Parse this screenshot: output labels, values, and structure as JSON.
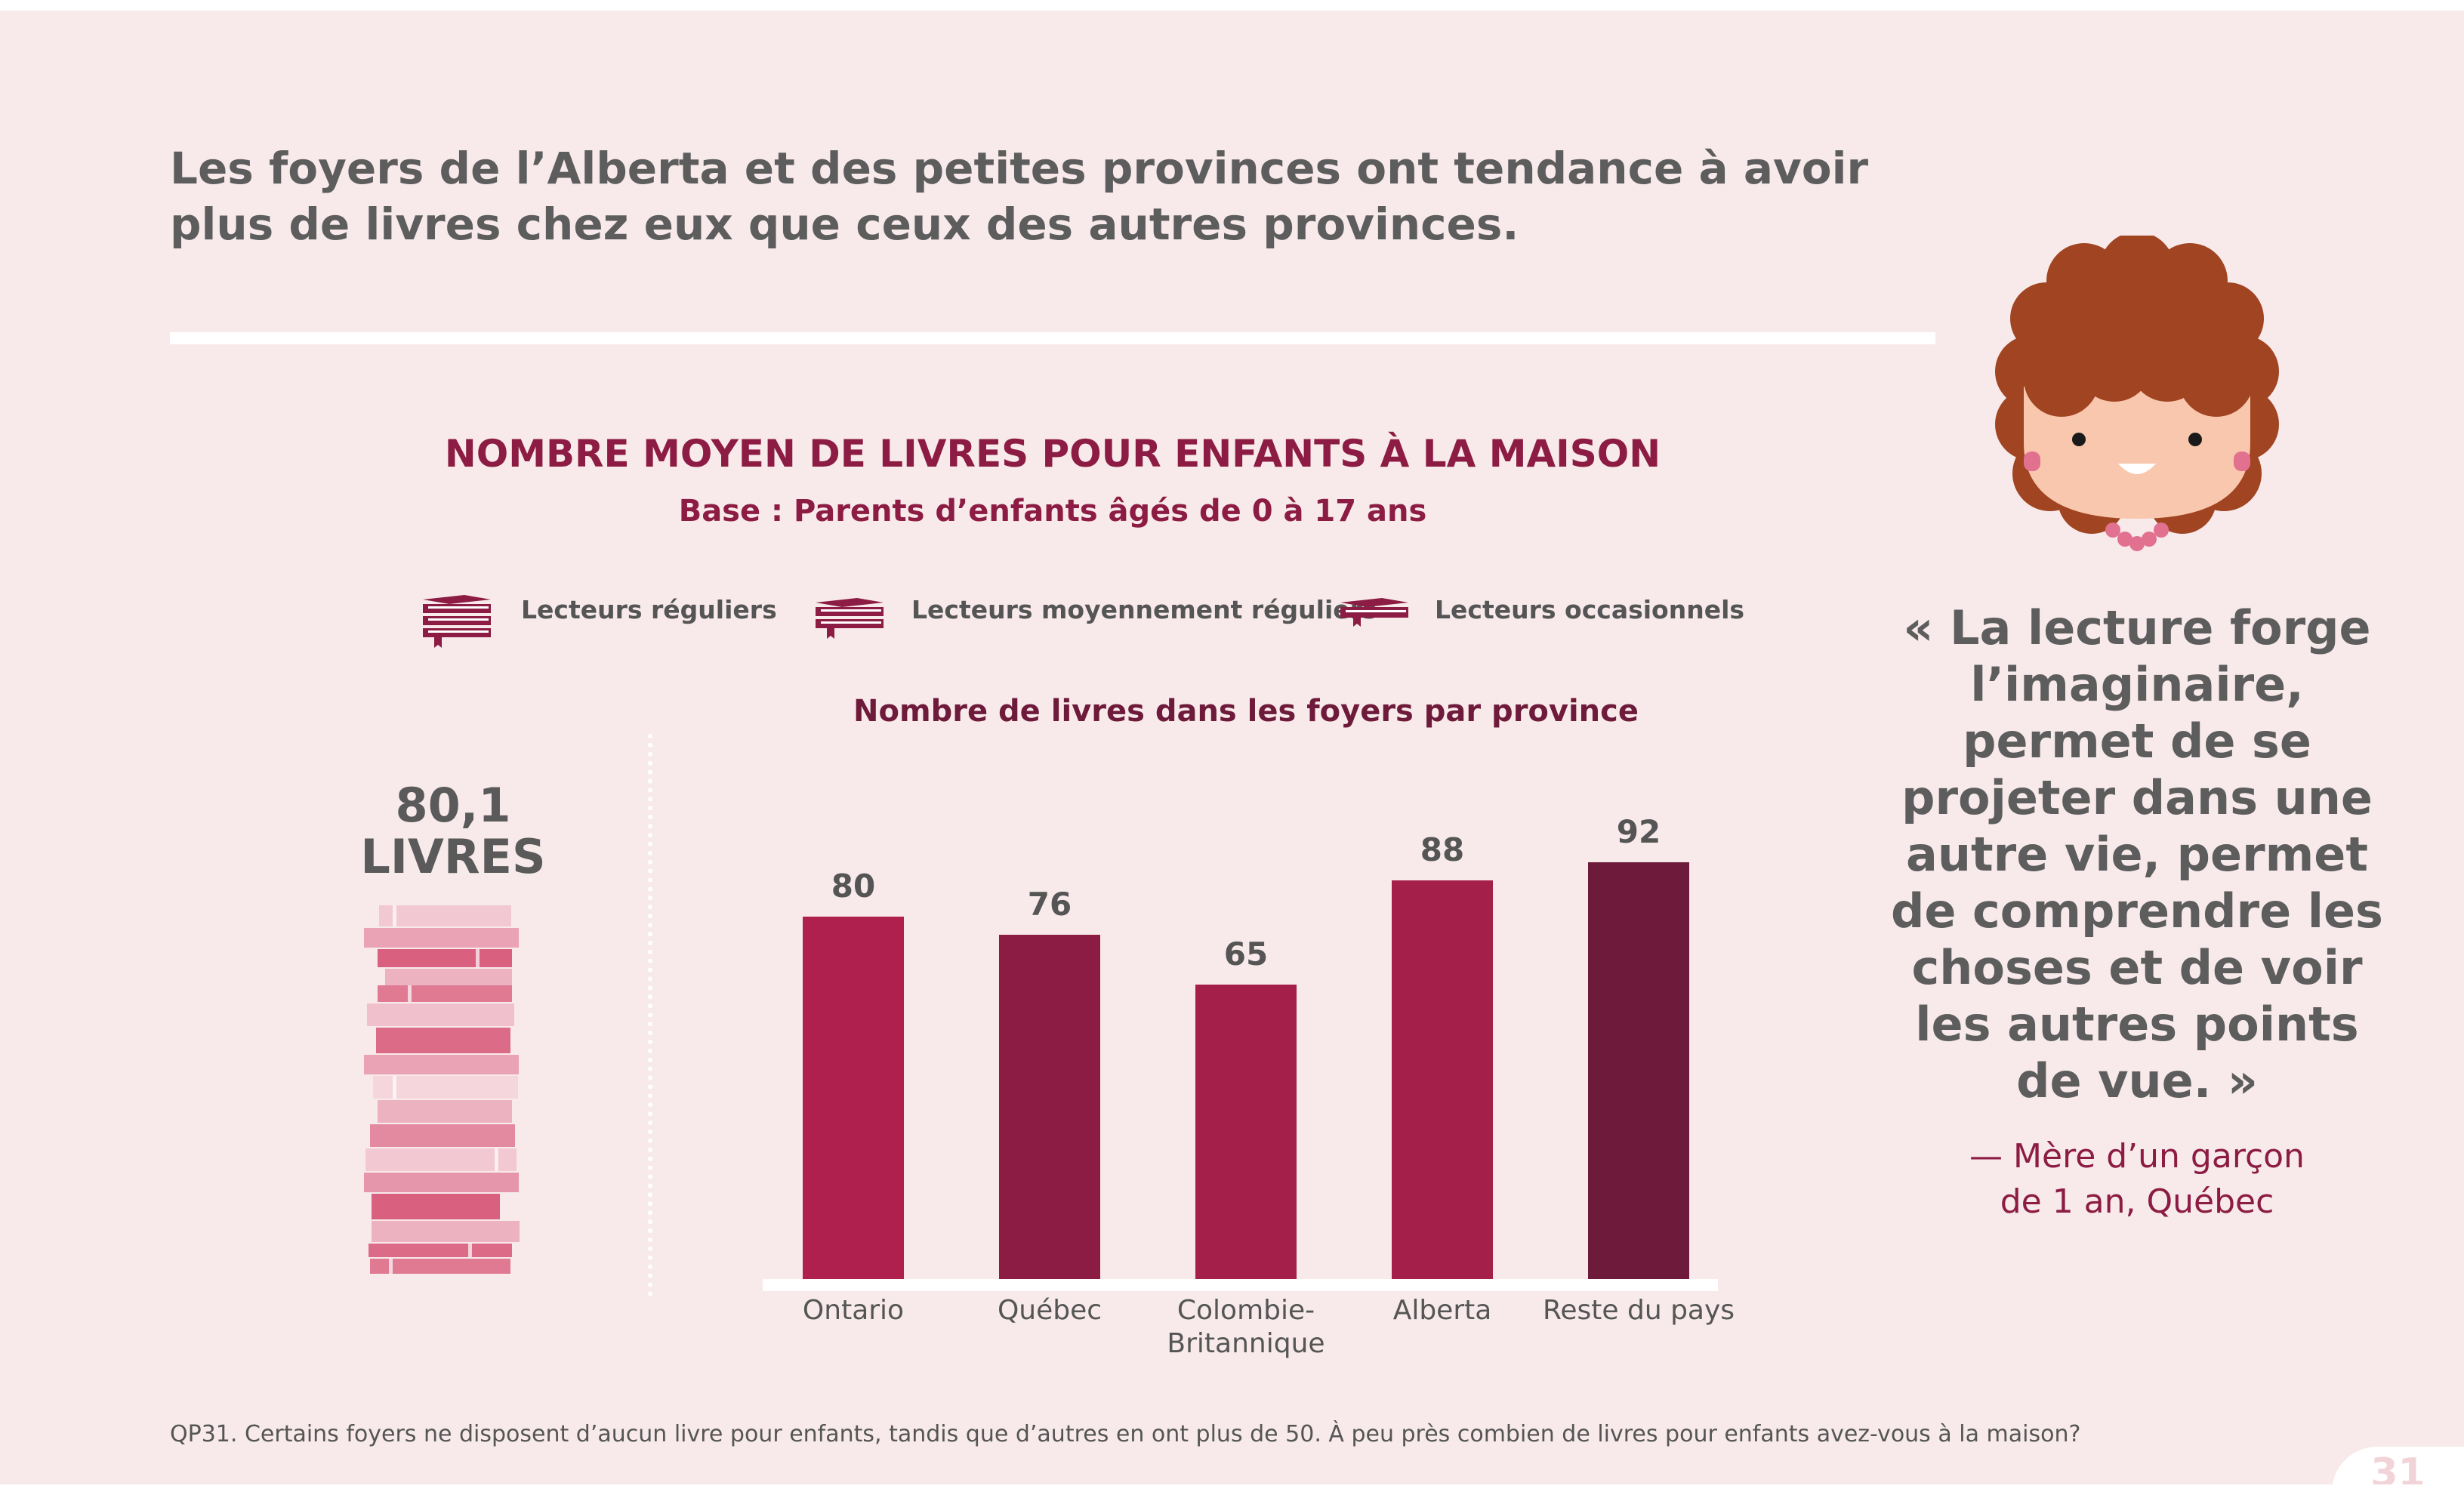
{
  "headline": "Les foyers de l’Alberta et des petites provinces ont tendance à avoir plus de livres chez eux que ceux des autres provinces.",
  "chart_title": "NOMBRE MOYEN DE LIVRES POUR ENFANTS À LA MAISON",
  "chart_subtitle": "Base : Parents d’enfants âgés de 0 à 17 ans",
  "legend": [
    {
      "label": "Lecteurs réguliers",
      "icon": "stacked-books-icon",
      "color": "#8c1c43"
    },
    {
      "label": "Lecteurs moyennement réguliers",
      "icon": "stacked-books-icon",
      "color": "#8c1c43"
    },
    {
      "label": "Lecteurs occasionnels",
      "icon": "single-book-icon",
      "color": "#8c1c43"
    }
  ],
  "average": {
    "value": "80,1",
    "unit": "LIVRES"
  },
  "chart_data": {
    "type": "bar",
    "title": "Nombre de livres dans les foyers par province",
    "categories": [
      "Ontario",
      "Québec",
      "Colombie-Britannique",
      "Alberta",
      "Reste du pays"
    ],
    "category_lines": [
      [
        "Ontario"
      ],
      [
        "Québec"
      ],
      [
        "Colombie-",
        "Britannique"
      ],
      [
        "Alberta"
      ],
      [
        "Reste du pays"
      ]
    ],
    "values": [
      80,
      76,
      65,
      88,
      92
    ],
    "colors": [
      "#b0204e",
      "#8c1c43",
      "#a51f4b",
      "#a51f4b",
      "#6e1a3a"
    ],
    "ylim": [
      0,
      100
    ],
    "xlabel": "",
    "ylabel": "",
    "grid": false
  },
  "quote": {
    "text": "« La lecture forge l’imaginaire, permet de se projeter dans une autre vie, permet de comprendre les choses et de voir les autres points de vue. »",
    "lines": [
      "« La lecture forge",
      "l’imaginaire,",
      "permet de se",
      "projeter dans une",
      "autre vie, permet",
      "de comprendre les",
      "choses et de voir",
      "les autres points",
      "de vue. »"
    ],
    "attribution_lines": [
      "— Mère d’un garçon",
      "de 1 an, Québec"
    ]
  },
  "footnote": "QP31. Certains foyers ne disposent d’aucun livre pour enfants, tandis que d’autres en ont plus de 50. À peu près combien de livres pour enfants avez-vous à la maison?",
  "page_number": "31",
  "colors": {
    "background": "#f8eaeb",
    "accent": "#8c1c43",
    "text": "#5d5d5d"
  }
}
